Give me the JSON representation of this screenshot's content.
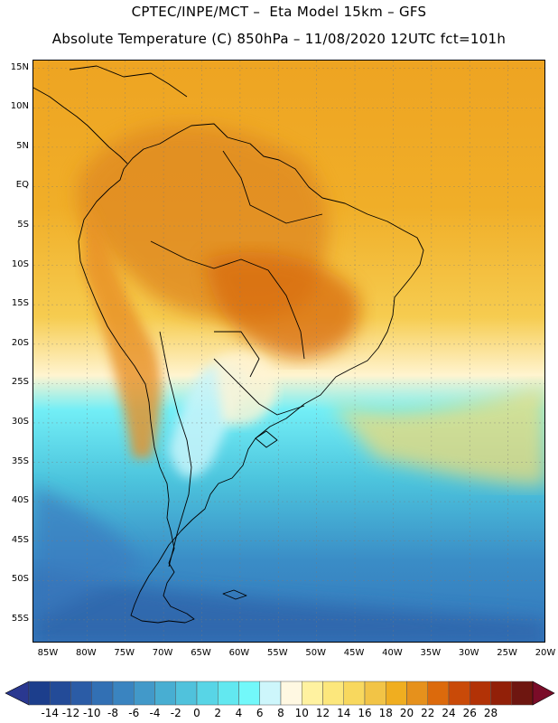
{
  "title": {
    "line1": "CPTEC/INPE/MCT –  Eta Model 15km – GFS",
    "line2": "Absolute Temperature (C) 850hPa – 11/08/2020 12UTC fct=101h"
  },
  "map": {
    "projection": "lat-lon",
    "lon_range": [
      -87,
      -20
    ],
    "lat_range": [
      -58,
      16
    ],
    "lat_labels": [
      {
        "label": "15N",
        "lat": 15
      },
      {
        "label": "10N",
        "lat": 10
      },
      {
        "label": "5N",
        "lat": 5
      },
      {
        "label": "EQ",
        "lat": 0
      },
      {
        "label": "5S",
        "lat": -5
      },
      {
        "label": "10S",
        "lat": -10
      },
      {
        "label": "15S",
        "lat": -15
      },
      {
        "label": "20S",
        "lat": -20
      },
      {
        "label": "25S",
        "lat": -25
      },
      {
        "label": "30S",
        "lat": -30
      },
      {
        "label": "35S",
        "lat": -35
      },
      {
        "label": "40S",
        "lat": -40
      },
      {
        "label": "45S",
        "lat": -45
      },
      {
        "label": "50S",
        "lat": -50
      },
      {
        "label": "55S",
        "lat": -55
      }
    ],
    "lon_labels": [
      {
        "label": "85W",
        "lon": -85
      },
      {
        "label": "80W",
        "lon": -80
      },
      {
        "label": "75W",
        "lon": -75
      },
      {
        "label": "70W",
        "lon": -70
      },
      {
        "label": "65W",
        "lon": -65
      },
      {
        "label": "60W",
        "lon": -60
      },
      {
        "label": "55W",
        "lon": -55
      },
      {
        "label": "50W",
        "lon": -50
      },
      {
        "label": "45W",
        "lon": -45
      },
      {
        "label": "40W",
        "lon": -40
      },
      {
        "label": "35W",
        "lon": -35
      },
      {
        "label": "30W",
        "lon": -30
      },
      {
        "label": "25W",
        "lon": -25
      },
      {
        "label": "20W",
        "lon": -20
      }
    ],
    "colors": {
      "cold_deep": "#1f4e99",
      "cold": "#3a82c4",
      "cool": "#4ec0dc",
      "cyan": "#5ce4f0",
      "neutral": "#fff6dc",
      "warm": "#f4c640",
      "hot": "#f0a020",
      "very_hot": "#e07818",
      "coast": "#000000"
    }
  },
  "colorbar": {
    "labels": [
      "-14",
      "-12",
      "-10",
      "-8",
      "-6",
      "-4",
      "-2",
      "0",
      "2",
      "4",
      "6",
      "8",
      "10",
      "12",
      "14",
      "16",
      "18",
      "20",
      "22",
      "24",
      "26",
      "28"
    ],
    "colors": [
      "#1c3e8c",
      "#234b98",
      "#2b5ca6",
      "#3270b4",
      "#3a84c0",
      "#4299c9",
      "#48aed2",
      "#50c2dc",
      "#58d5e6",
      "#62e8f0",
      "#72f8fa",
      "#cdf6fb",
      "#fff8e2",
      "#fff2a0",
      "#fce77c",
      "#f8d85e",
      "#f2c446",
      "#f0ae20",
      "#e6911c",
      "#dc6a0c",
      "#c94a08",
      "#b23206",
      "#922008",
      "#6e1610"
    ],
    "low_arrow_color": "#2a3890",
    "high_arrow_color": "#7a0c28"
  }
}
